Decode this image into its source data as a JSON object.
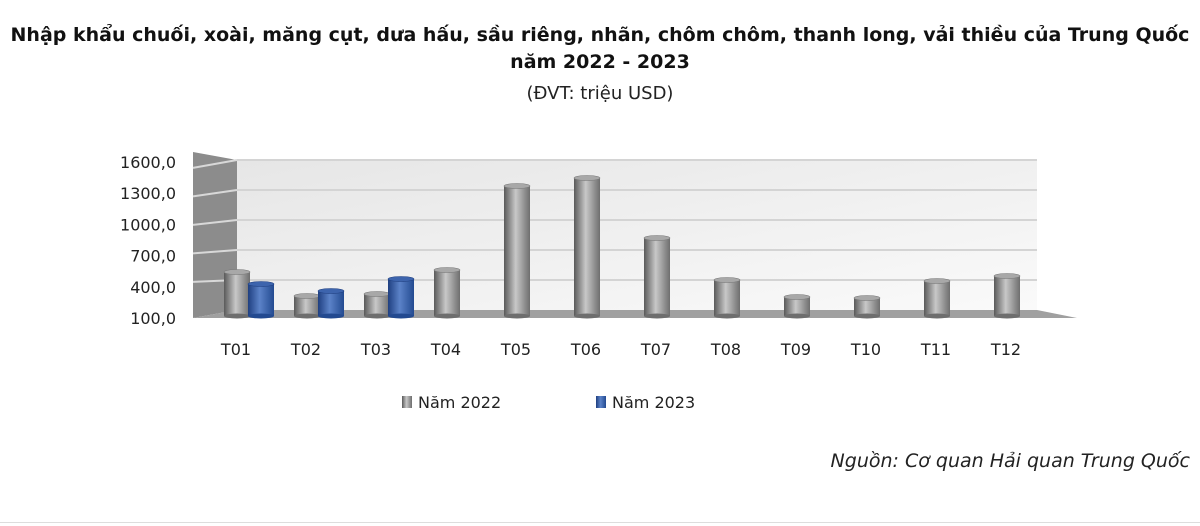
{
  "chart_data": {
    "type": "bar",
    "title": "Nhập khẩu chuối, xoài, măng cụt, dưa hấu, sầu riêng, nhãn, chôm chôm, thanh long, vải thiều của Trung Quốc năm 2022 - 2023",
    "subtitle": "(ĐVT: triệu USD)",
    "categories": [
      "T01",
      "T02",
      "T03",
      "T04",
      "T05",
      "T06",
      "T07",
      "T08",
      "T09",
      "T10",
      "T11",
      "T12"
    ],
    "series": [
      {
        "name": "Năm 2022",
        "color": "#9a9a9a",
        "values": [
          500,
          260,
          280,
          520,
          1360,
          1440,
          840,
          420,
          250,
          240,
          410,
          460
        ]
      },
      {
        "name": "Năm 2023",
        "color": "#2f5597",
        "values": [
          380,
          310,
          430,
          null,
          null,
          null,
          null,
          null,
          null,
          null,
          null,
          null
        ]
      }
    ],
    "yticks": [
      "100,0",
      "400,0",
      "700,0",
      "1000,0",
      "1300,0",
      "1600,0"
    ],
    "ylim": [
      100,
      1600
    ],
    "grid": true,
    "legend": "bottom",
    "style": "3d-cylinder"
  },
  "source": "Nguồn: Cơ quan Hải quan Trung Quốc"
}
